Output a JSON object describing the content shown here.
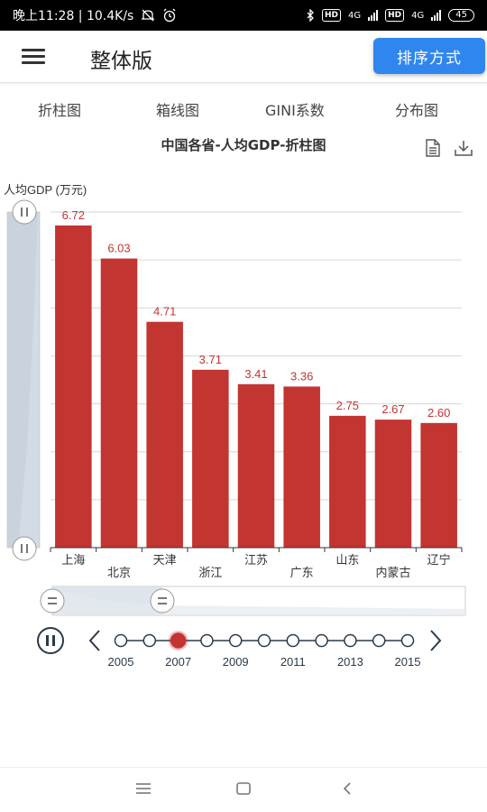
{
  "status_bar": {
    "time_speed": "晚上11:28 | 10.4K/s",
    "hd1": "HD",
    "net1": "4G",
    "hd2": "HD",
    "net2": "4G",
    "battery": "45"
  },
  "header": {
    "title": "整体版",
    "sort_button": "排序方式"
  },
  "tabs": [
    {
      "label": "折柱图"
    },
    {
      "label": "箱线图"
    },
    {
      "label": "GINI系数"
    },
    {
      "label": "分布图"
    }
  ],
  "icons": {
    "menu": "menu-icon",
    "data_view": "document-icon",
    "download": "download-icon",
    "play_pause": "pause-icon",
    "prev": "chevron-left-icon",
    "next": "chevron-right-icon"
  },
  "chart_data": {
    "type": "bar",
    "title": "中国各省-人均GDP-折柱图",
    "ylabel": "人均GDP (万元)",
    "ylim": [
      0,
      7
    ],
    "yticks": [
      1,
      2,
      3,
      4,
      5,
      6
    ],
    "categories": [
      "上海",
      "北京",
      "天津",
      "浙江",
      "江苏",
      "广东",
      "山东",
      "内蒙古",
      "辽宁"
    ],
    "values": [
      6.72,
      6.03,
      4.71,
      3.71,
      3.41,
      3.36,
      2.75,
      2.67,
      2.6
    ],
    "value_labels": [
      "6.72",
      "6.03",
      "4.71",
      "3.71",
      "3.41",
      "3.36",
      "2.75",
      "2.67",
      "2.60"
    ],
    "bar_color": "#c23531",
    "grid": true,
    "timeline": {
      "years": [
        "2005",
        "2006",
        "2007",
        "2008",
        "2009",
        "2010",
        "2011",
        "2012",
        "2013",
        "2014",
        "2015"
      ],
      "labels": [
        "2005",
        "2007",
        "2009",
        "2011",
        "2013",
        "2015"
      ],
      "current": "2007",
      "playing": true,
      "active_color": "#c23531"
    },
    "datazoom": {
      "y_range": [
        0,
        1
      ],
      "x_range": [
        0,
        0.2
      ]
    }
  }
}
